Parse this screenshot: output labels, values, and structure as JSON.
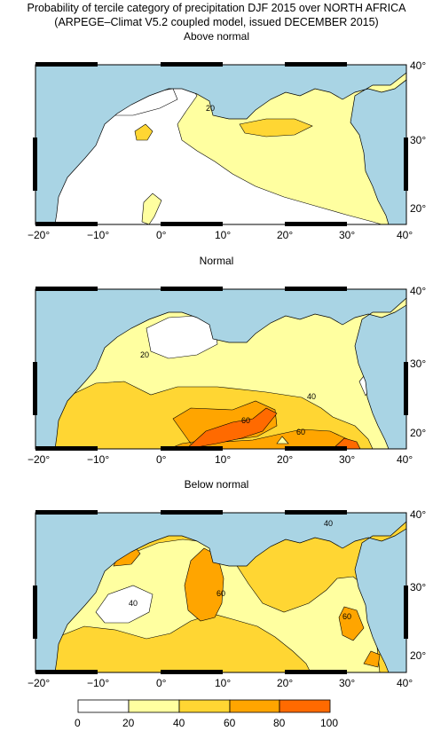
{
  "title_line1": "Probability of tercile category of precipitation DJF 2015 over NORTH AFRICA",
  "title_line2": "(ARPEGE–Climat V5.2 coupled model, issued DECEMBER 2015)",
  "panels": [
    {
      "title": "Above normal",
      "contour_labels": [
        "20"
      ]
    },
    {
      "title": "Normal",
      "contour_labels": [
        "20",
        "40",
        "60",
        "60"
      ]
    },
    {
      "title": "Below normal",
      "contour_labels": [
        "40",
        "60",
        "60",
        "40"
      ]
    }
  ],
  "lon_ticks": [
    "−20°",
    "−10°",
    "0°",
    "10°",
    "20°",
    "30°",
    "40°"
  ],
  "lat_ticks": [
    "40°",
    "30°",
    "20°"
  ],
  "colorbar": {
    "ticks": [
      "0",
      "20",
      "40",
      "60",
      "80",
      "100"
    ],
    "colors": [
      "#ffffff",
      "#ffffa0",
      "#ffd633",
      "#ffa500",
      "#ff6a00"
    ]
  },
  "colors": {
    "sea": "#a9d4e4",
    "outline": "#000000"
  }
}
